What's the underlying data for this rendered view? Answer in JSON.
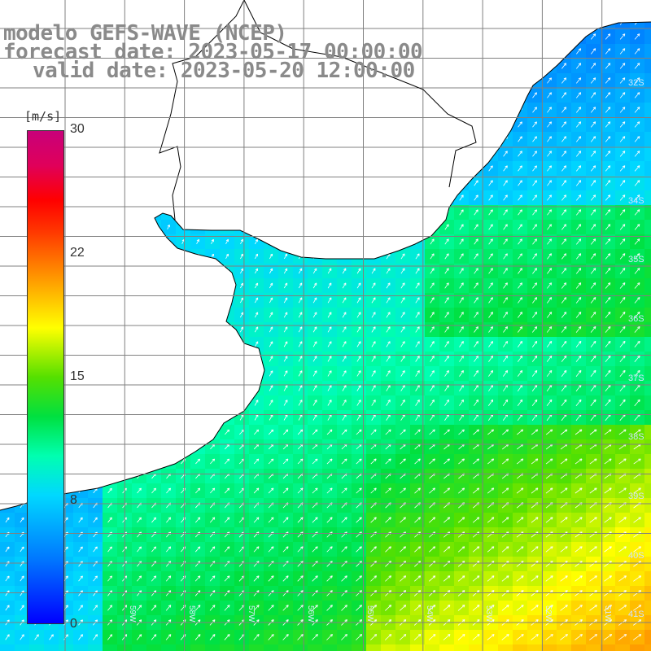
{
  "title": {
    "line1": "modelo GEFS-WAVE (NCEP)",
    "line2": "forecast date: 2023-05-17 00:00:00",
    "line3": "valid date: 2023-05-20 12:00:00"
  },
  "colorbar": {
    "unit": "[m/s]",
    "ticks": [
      "30",
      "22",
      "15",
      "8",
      "0"
    ],
    "colors": [
      "#0000ff",
      "#00d8ff",
      "#00e040",
      "#ffff00",
      "#ff0000",
      "#c8007a"
    ]
  },
  "lat_labels": [
    "32S",
    "34S",
    "35S",
    "36S",
    "37S",
    "38S",
    "39S",
    "40S",
    "41S"
  ],
  "lon_labels": [
    "59W",
    "58W",
    "57W",
    "56W",
    "55W",
    "54W",
    "53W",
    "52W",
    "51W"
  ],
  "land_color": "#ffffff",
  "grid_color": "#808080"
}
